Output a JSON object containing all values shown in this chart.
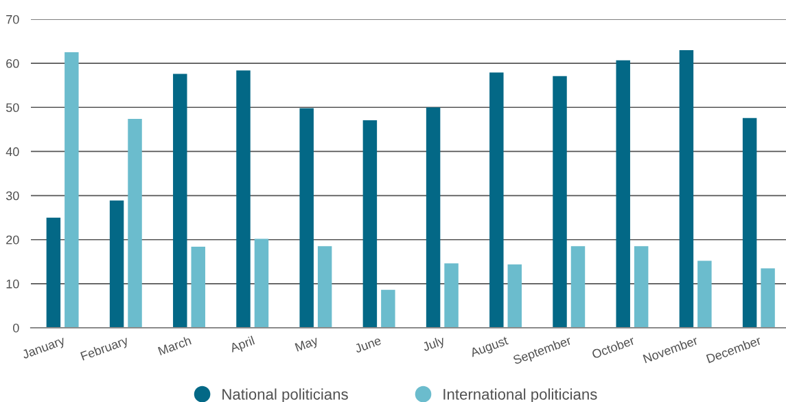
{
  "chart_data": {
    "type": "bar",
    "categories": [
      "January",
      "February",
      "March",
      "April",
      "May",
      "June",
      "July",
      "August",
      "September",
      "October",
      "November",
      "December"
    ],
    "series": [
      {
        "name": "National politicians",
        "color": "#036886",
        "values": [
          25.0,
          28.9,
          57.6,
          58.4,
          49.8,
          47.1,
          50.0,
          57.9,
          57.1,
          60.7,
          63.0,
          47.6
        ]
      },
      {
        "name": "International politicians",
        "color": "#6bbccd",
        "values": [
          62.5,
          47.4,
          18.4,
          20.2,
          18.5,
          8.6,
          14.6,
          14.4,
          18.5,
          18.5,
          15.2,
          13.5
        ]
      }
    ],
    "ylim": [
      0,
      70
    ],
    "yticks": [
      0,
      10,
      20,
      30,
      40,
      50,
      60,
      70
    ],
    "grid": "y",
    "legend": "bottom"
  }
}
